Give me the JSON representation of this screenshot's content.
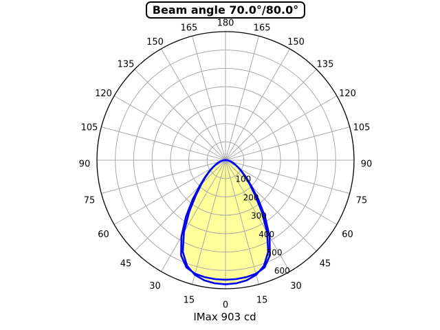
{
  "title": "Beam angle 70.0°/80.0°",
  "footer": "IMax 903 cd",
  "chart_data": {
    "type": "polar",
    "subtype": "photometric-intensity-distribution",
    "title": "Beam angle 70.0°/80.0°",
    "imax_label": "IMax 903 cd",
    "imax_cd": 903,
    "angle_step_deg": 5,
    "angle_ticks": [
      0,
      15,
      30,
      45,
      60,
      75,
      90,
      105,
      120,
      135,
      150,
      165,
      180
    ],
    "angle_ticks_mirrored": true,
    "radial_ticks": [
      100,
      200,
      300,
      400,
      500,
      600
    ],
    "axis_max": 700,
    "grid": true,
    "colors": {
      "curve": "#0000ff",
      "fill": "#ffff9b",
      "grid": "#a9a9a9",
      "axis": "#000000",
      "background": "#ffffff"
    },
    "series": [
      {
        "name": "curve-1",
        "beam_angle_deg": 70.0,
        "values_cd": [
          676,
          673,
          664,
          646,
          612,
          550,
          452,
          345,
          253,
          188,
          142,
          106,
          80,
          60,
          44,
          31,
          21,
          13,
          7,
          3,
          0,
          0,
          0,
          0,
          0,
          0,
          0,
          0,
          0,
          0,
          0,
          0,
          0,
          0,
          0,
          0,
          0
        ]
      },
      {
        "name": "curve-2",
        "beam_angle_deg": 80.0,
        "values_cd": [
          651,
          650,
          647,
          640,
          622,
          572,
          480,
          375,
          278,
          200,
          148,
          110,
          83,
          62,
          45,
          32,
          22,
          14,
          8,
          3,
          0,
          0,
          0,
          0,
          0,
          0,
          0,
          0,
          0,
          0,
          0,
          0,
          0,
          0,
          0,
          0,
          0
        ]
      }
    ]
  }
}
